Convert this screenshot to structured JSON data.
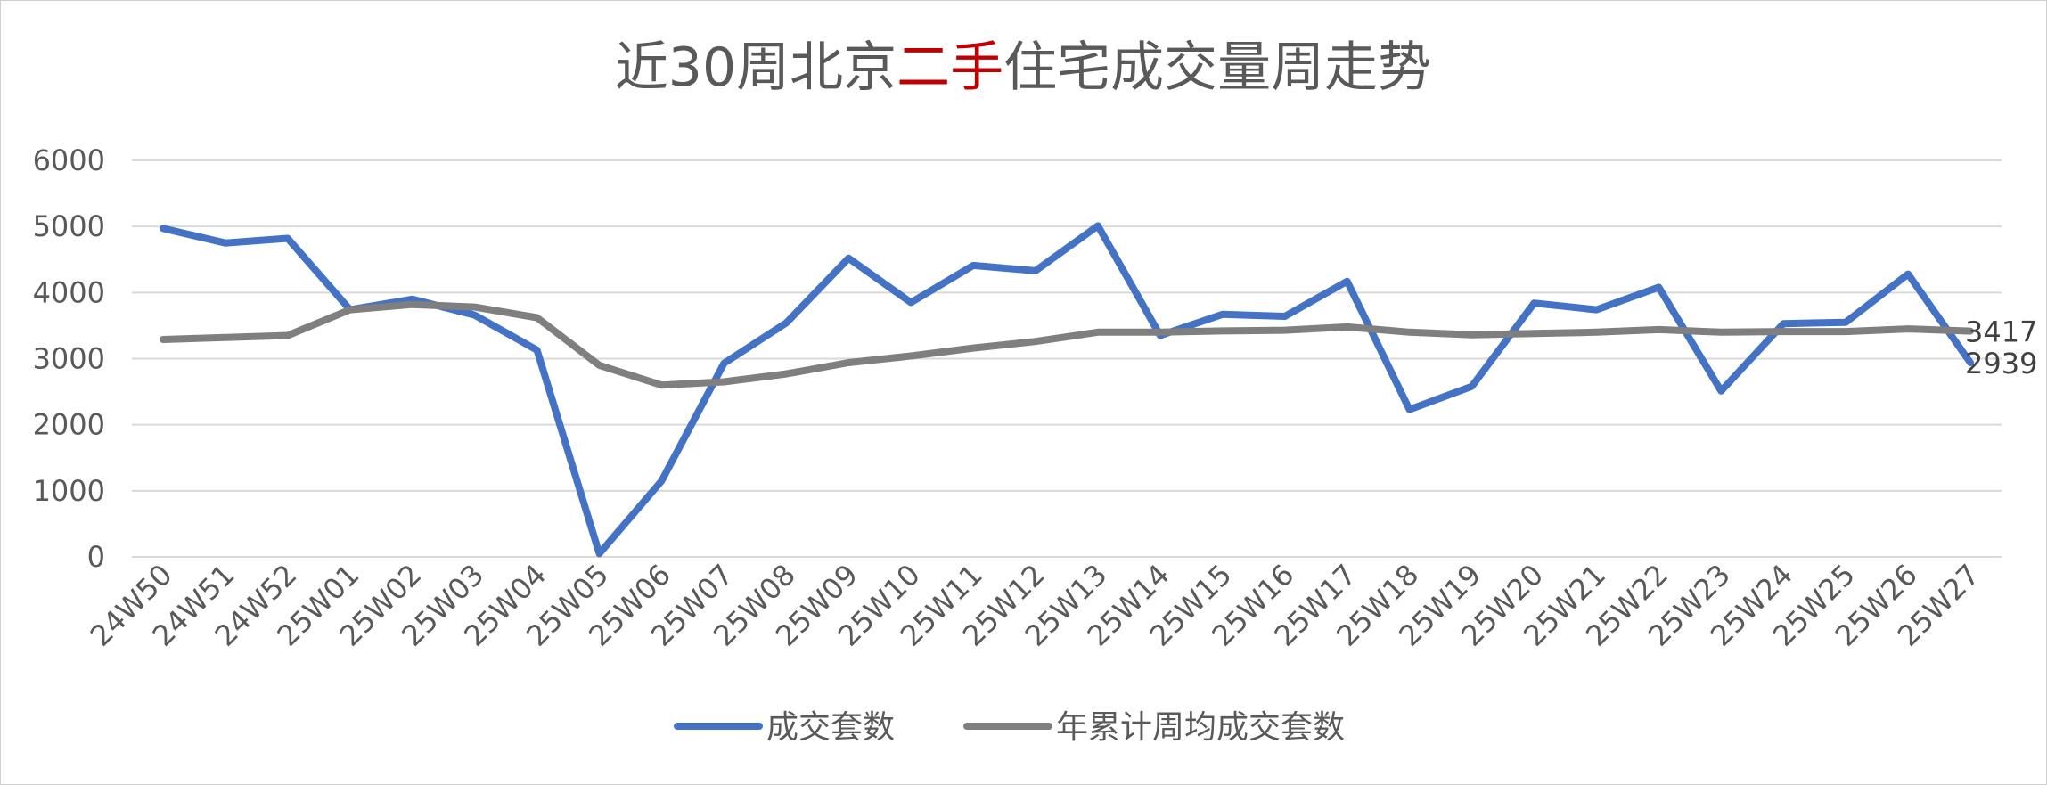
{
  "chart_data": {
    "type": "line",
    "title_parts": [
      "近30周北京",
      "二手",
      "住宅成交量周走势"
    ],
    "title_colors": [
      "#595959",
      "#c00000",
      "#595959"
    ],
    "categories": [
      "24W50",
      "24W51",
      "24W52",
      "25W01",
      "25W02",
      "25W03",
      "25W04",
      "25W05",
      "25W06",
      "25W07",
      "25W08",
      "25W09",
      "25W10",
      "25W11",
      "25W12",
      "25W13",
      "25W14",
      "25W15",
      "25W16",
      "25W17",
      "25W18",
      "25W19",
      "25W20",
      "25W21",
      "25W22",
      "25W23",
      "25W24",
      "25W25",
      "25W26",
      "25W27"
    ],
    "yticks": [
      "0",
      "1000",
      "2000",
      "3000",
      "4000",
      "5000",
      "6000"
    ],
    "ylim": [
      0,
      6000
    ],
    "grid": true,
    "legend_position": "bottom",
    "series": [
      {
        "name": "成交套数",
        "color": "#4472c4",
        "values": [
          4970,
          4750,
          4820,
          3740,
          3900,
          3660,
          3130,
          50,
          1150,
          2930,
          3540,
          4520,
          3850,
          4410,
          4330,
          5010,
          3350,
          3670,
          3640,
          4170,
          2230,
          2580,
          3840,
          3740,
          4080,
          2510,
          3530,
          3550,
          4280,
          2939
        ],
        "last_label": "2939"
      },
      {
        "name": "年累计周均成交套数",
        "color": "#7f7f7f",
        "values": [
          3290,
          3320,
          3350,
          3740,
          3820,
          3780,
          3620,
          2900,
          2600,
          2650,
          2770,
          2940,
          3040,
          3160,
          3260,
          3400,
          3400,
          3420,
          3430,
          3480,
          3400,
          3360,
          3380,
          3400,
          3440,
          3400,
          3410,
          3410,
          3450,
          3417
        ],
        "last_label": "3417"
      }
    ]
  }
}
